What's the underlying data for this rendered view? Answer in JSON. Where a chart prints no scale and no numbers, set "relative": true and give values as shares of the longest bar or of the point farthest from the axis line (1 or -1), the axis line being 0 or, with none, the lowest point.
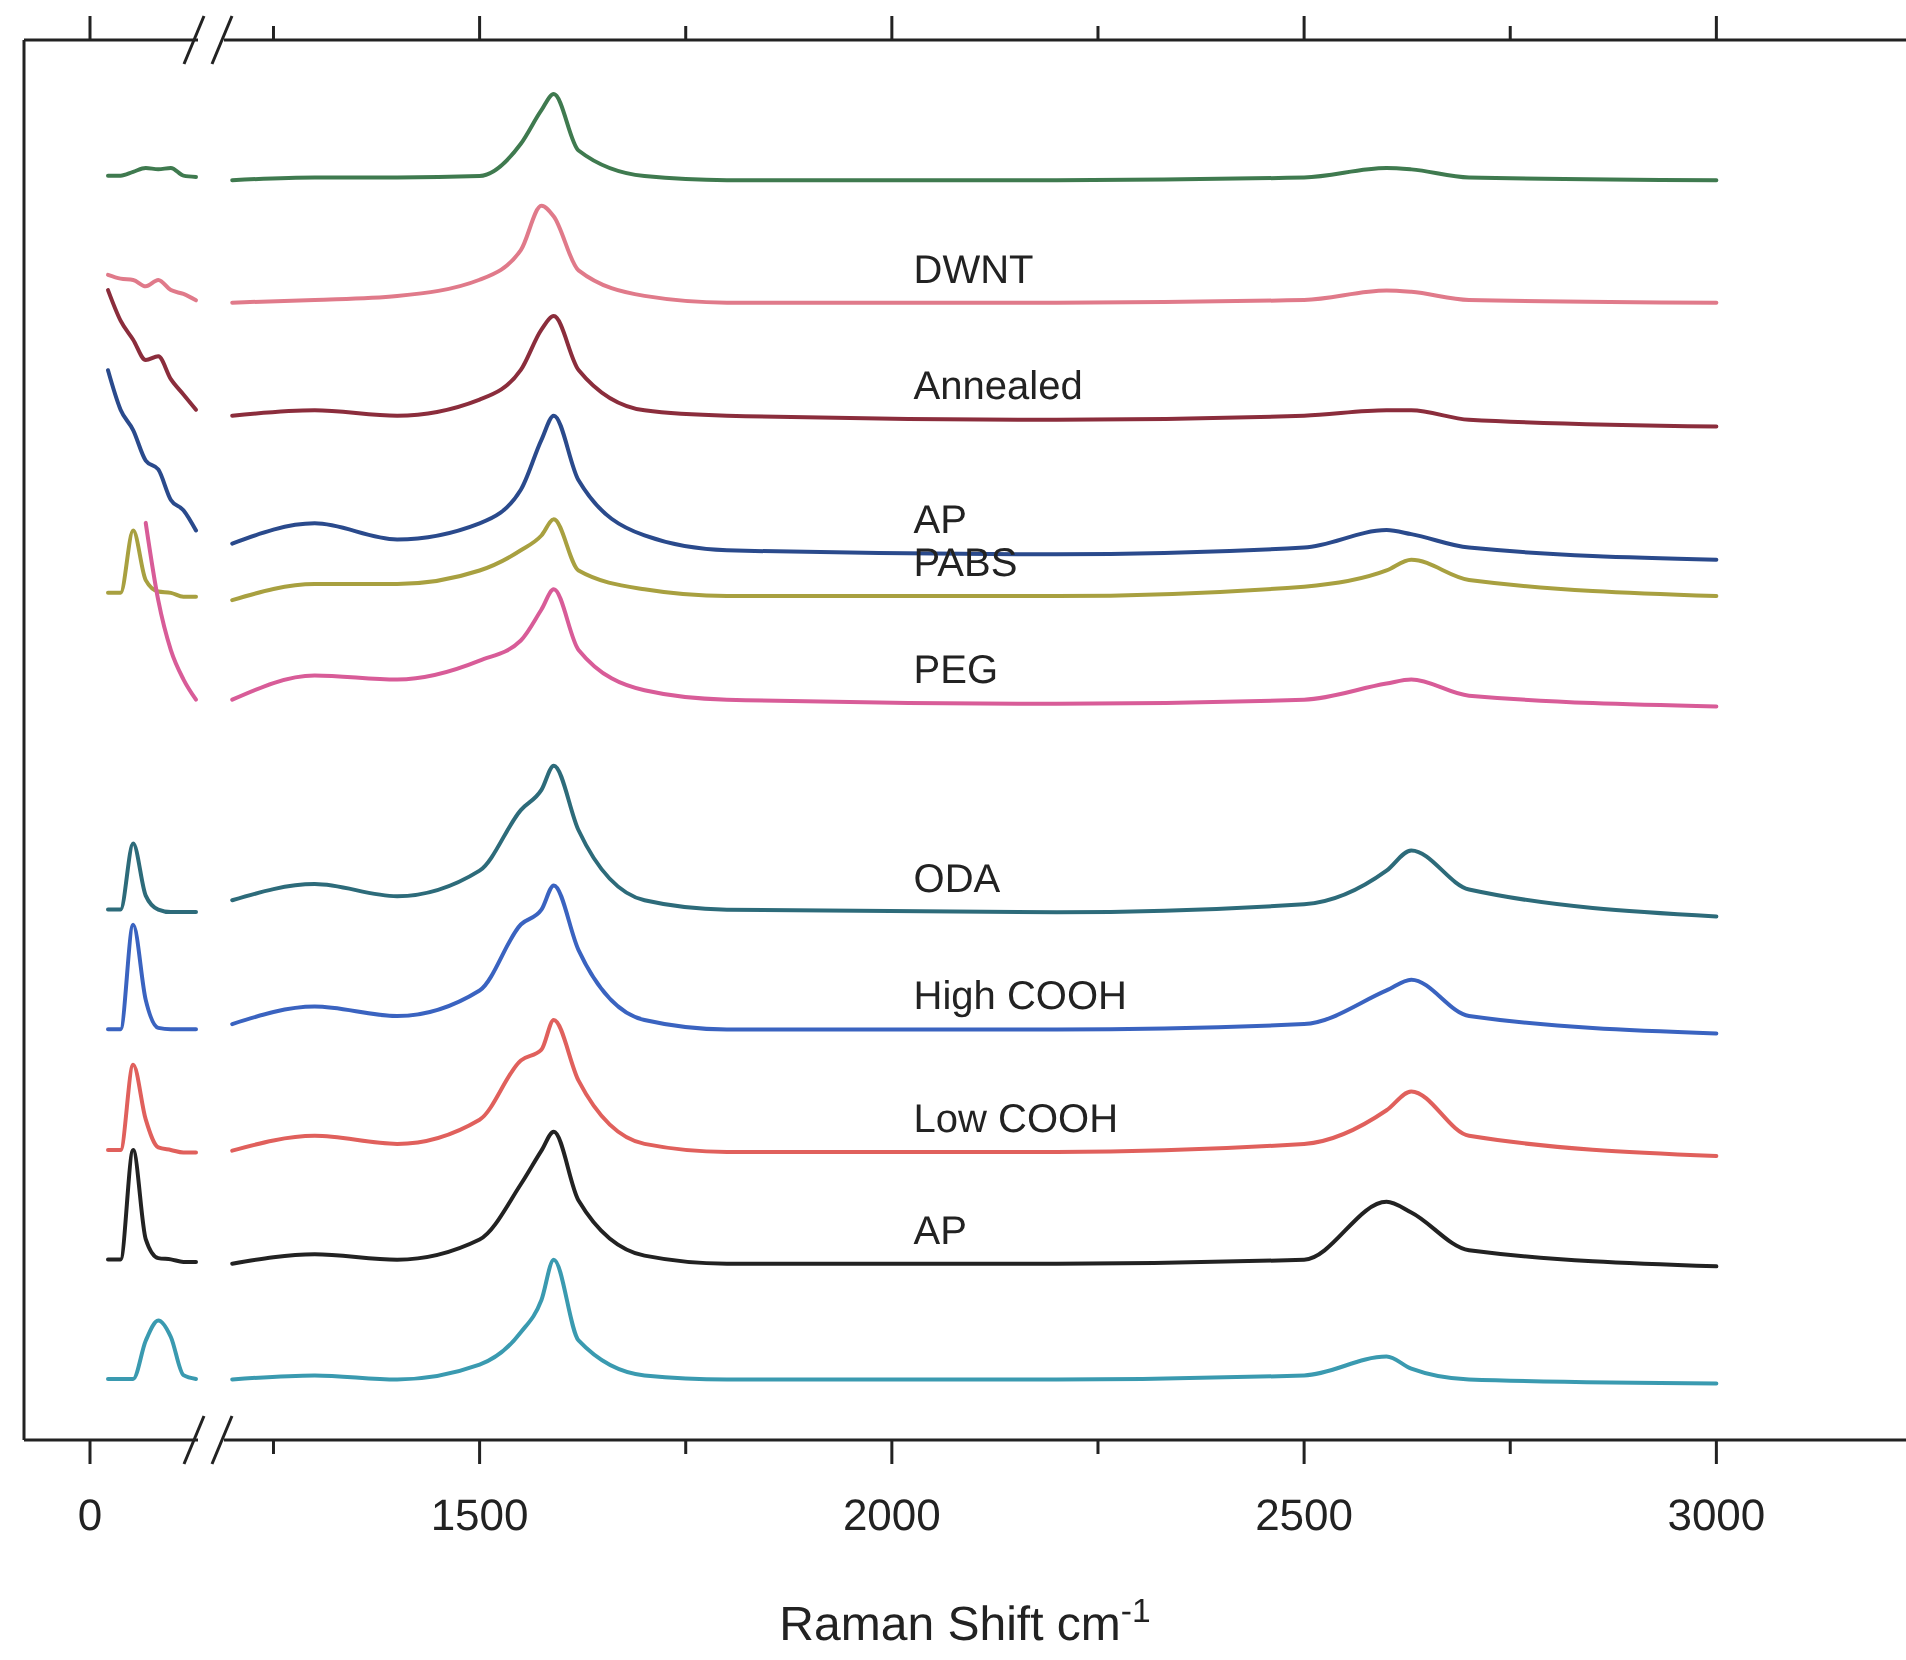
{
  "chart_data": [
    {
      "type": "line",
      "relative": true,
      "annotations": [
        "0"
      ],
      "categories": [
        null,
        null,
        null,
        null,
        null,
        null,
        null,
        null
      ],
      "series": [
        {
          "color": "#3f7a4f",
          "values": [
            0.994,
            0.994,
            0.997,
            1,
            0.999,
            1,
            0.994,
            0.993
          ]
        },
        {
          "color": "#e07a8a",
          "values": [
            0.916,
            0.913,
            0.912,
            0.907,
            0.912,
            0.904,
            0.901,
            0.896
          ]
        },
        {
          "color": "#8b2d3c",
          "values": [
            0.904,
            0.88,
            0.865,
            0.849,
            0.852,
            0.834,
            0.822,
            0.81
          ]
        },
        {
          "color": "#2a4a8c",
          "values": [
            0.841,
            0.81,
            0.794,
            0.77,
            0.763,
            0.739,
            0.731,
            0.715
          ]
        },
        {
          "color": "#a8a040",
          "values": [
            0.666,
            0.666,
            0.715,
            0.676,
            0.667,
            0.666,
            0.663,
            0.663
          ]
        },
        {
          "color": "#d85c98",
          "values": [
            null,
            null,
            null,
            0.721,
            0.66,
            0.621,
            0.598,
            0.582
          ]
        },
        {
          "color": "#2d6b7a",
          "values": [
            0.417,
            0.417,
            0.469,
            0.428,
            0.417,
            0.415,
            0.415,
            0.415
          ]
        },
        {
          "color": "#3a63c0",
          "values": [
            0.323,
            0.323,
            0.405,
            0.346,
            0.324,
            0.323,
            0.323,
            0.323
          ]
        },
        {
          "color": "#e0605c",
          "values": [
            0.228,
            0.228,
            0.295,
            0.252,
            0.23,
            0.228,
            0.226,
            0.226
          ]
        },
        {
          "color": "#222222",
          "values": [
            0.142,
            0.142,
            0.228,
            0.158,
            0.143,
            0.142,
            0.14,
            0.14
          ]
        },
        {
          "color": "#3a9ab0",
          "values": [
            0.048,
            0.048,
            0.048,
            0.078,
            0.094,
            0.081,
            0.051,
            0.048
          ]
        }
      ]
    },
    {
      "type": "line",
      "relative": true,
      "xlabel": "Raman Shift cm$^{-1}$",
      "xlim": [
        1190,
        3230
      ],
      "xticks": [
        {
          "value": 1250,
          "label": null
        },
        1500,
        {
          "value": 1750,
          "label": null
        },
        2000,
        {
          "value": 2250,
          "label": null
        },
        2500,
        {
          "value": 2750,
          "label": null
        },
        3000
      ],
      "x": [
        1200,
        1300,
        1400,
        1500,
        1550,
        1575,
        1590,
        1620,
        1700,
        1800,
        2200,
        2500,
        2600,
        2630,
        2700,
        3000
      ],
      "series": [
        {
          "color": "#3f7a4f",
          "values": [
            0.936,
            0.938,
            0.938,
            0.939,
            0.963,
            0.988,
            1,
            0.958,
            0.939,
            0.936,
            0.936,
            0.938,
            0.945,
            0.944,
            0.938,
            0.936
          ]
        },
        {
          "name": "DWNT",
          "color": "#e07a8a",
          "values": [
            0.845,
            0.847,
            0.85,
            0.862,
            0.884,
            0.917,
            0.909,
            0.869,
            0.85,
            0.845,
            0.845,
            0.847,
            0.854,
            0.853,
            0.847,
            0.845
          ]
        },
        {
          "name": "Annealed",
          "color": "#8b2d3c",
          "values": [
            0.761,
            0.765,
            0.761,
            0.773,
            0.795,
            0.825,
            0.835,
            0.795,
            0.765,
            0.761,
            0.758,
            0.761,
            0.765,
            0.765,
            0.758,
            0.753
          ]
        },
        {
          "name": "AP",
          "color": "#2a4a8c",
          "values": [
            0.666,
            0.681,
            0.669,
            0.681,
            0.706,
            0.743,
            0.761,
            0.713,
            0.672,
            0.661,
            0.658,
            0.663,
            0.676,
            0.673,
            0.663,
            0.654
          ]
        },
        {
          "name": "PABS",
          "color": "#a8a040",
          "values": [
            0.624,
            0.636,
            0.636,
            0.646,
            0.661,
            0.672,
            0.684,
            0.646,
            0.632,
            0.627,
            0.627,
            0.634,
            0.646,
            0.654,
            0.639,
            0.627
          ]
        },
        {
          "name": "PEG",
          "color": "#d85c98",
          "values": [
            0.55,
            0.568,
            0.565,
            0.579,
            0.594,
            0.617,
            0.632,
            0.587,
            0.557,
            0.55,
            0.547,
            0.55,
            0.562,
            0.565,
            0.553,
            0.545
          ]
        },
        {
          "name": "ODA",
          "color": "#2d6b7a",
          "values": [
            0.401,
            0.413,
            0.404,
            0.423,
            0.468,
            0.483,
            0.501,
            0.453,
            0.401,
            0.394,
            0.392,
            0.398,
            0.423,
            0.438,
            0.409,
            0.389
          ]
        },
        {
          "name": "High COOH",
          "color": "#3a63c0",
          "values": [
            0.309,
            0.322,
            0.315,
            0.334,
            0.383,
            0.394,
            0.412,
            0.364,
            0.312,
            0.305,
            0.305,
            0.309,
            0.334,
            0.342,
            0.315,
            0.302
          ]
        },
        {
          "name": "Low COOH",
          "color": "#e0605c",
          "values": [
            0.215,
            0.226,
            0.22,
            0.238,
            0.282,
            0.29,
            0.312,
            0.267,
            0.22,
            0.214,
            0.214,
            0.22,
            0.245,
            0.259,
            0.226,
            0.211
          ]
        },
        {
          "name": "AP",
          "color": "#222222",
          "values": [
            0.131,
            0.138,
            0.134,
            0.149,
            0.19,
            0.215,
            0.229,
            0.178,
            0.137,
            0.131,
            0.131,
            0.134,
            0.177,
            0.169,
            0.141,
            0.129
          ]
        },
        {
          "color": "#3a9ab0",
          "values": [
            0.045,
            0.048,
            0.045,
            0.056,
            0.08,
            0.104,
            0.134,
            0.074,
            0.048,
            0.045,
            0.045,
            0.048,
            0.062,
            0.053,
            0.045,
            0.042
          ]
        }
      ]
    }
  ]
}
